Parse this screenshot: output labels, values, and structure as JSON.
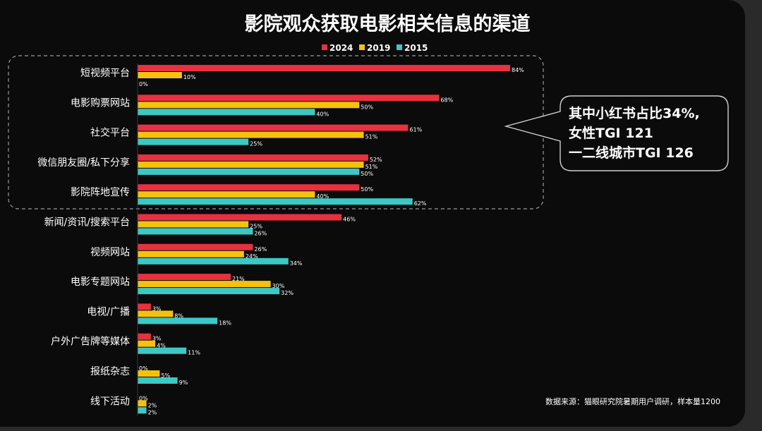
{
  "chart_data": {
    "type": "bar",
    "orientation": "horizontal",
    "title": "影院观众获取电影相关信息的渠道",
    "xlabel": "",
    "ylabel": "",
    "xlim": [
      0,
      100
    ],
    "grid": false,
    "legend_position": "top-center",
    "categories": [
      "短视频平台",
      "电影购票网站",
      "社交平台",
      "微信朋友圈/私下分享",
      "影院阵地宣传",
      "新闻/资讯/搜索平台",
      "视频网站",
      "电影专题网站",
      "电视/广播",
      "户外广告牌等媒体",
      "报纸杂志",
      "线下活动"
    ],
    "series": [
      {
        "name": "2024",
        "color": "#e8313f",
        "values": [
          84,
          68,
          61,
          52,
          50,
          46,
          26,
          21,
          3,
          3,
          0,
          0
        ]
      },
      {
        "name": "2019",
        "color": "#f4c20d",
        "values": [
          10,
          50,
          51,
          51,
          40,
          25,
          24,
          30,
          8,
          4,
          5,
          2
        ]
      },
      {
        "name": "2015",
        "color": "#3cc9c6",
        "values": [
          0,
          40,
          25,
          50,
          62,
          26,
          34,
          32,
          18,
          11,
          9,
          2
        ]
      }
    ],
    "value_suffix": "%",
    "callout": {
      "lines": [
        "其中小红书占比34%,",
        "女性TGI 121",
        "一二线城市TGI 126"
      ]
    },
    "source": "数据来源：猫眼研究院暑期用户调研，样本量1200"
  }
}
